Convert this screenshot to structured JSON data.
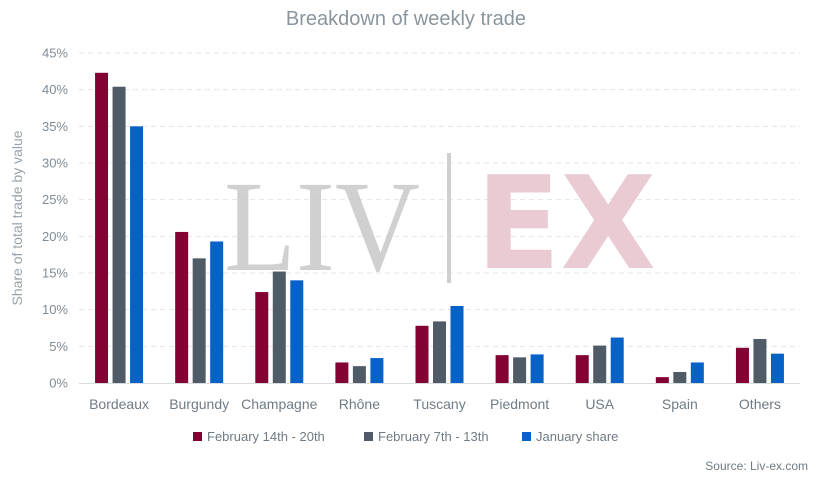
{
  "chart_data": {
    "type": "bar",
    "title": "Breakdown of weekly trade",
    "xlabel": "",
    "ylabel": "Share of total trade by value",
    "ylim": [
      0,
      45
    ],
    "y_ticks": [
      "0%",
      "5%",
      "10%",
      "15%",
      "20%",
      "25%",
      "30%",
      "35%",
      "40%",
      "45%"
    ],
    "grid": true,
    "legend_position": "bottom",
    "categories": [
      "Bordeaux",
      "Burgundy",
      "Champagne",
      "Rhône",
      "Tuscany",
      "Piedmont",
      "USA",
      "Spain",
      "Others"
    ],
    "series": [
      {
        "name": "February 14th - 20th",
        "color": "#820233",
        "values": [
          42.3,
          20.6,
          12.4,
          2.8,
          7.8,
          3.8,
          3.8,
          0.8,
          4.8
        ]
      },
      {
        "name": "February 7th - 13th",
        "color": "#4f5b66",
        "values": [
          40.4,
          17.0,
          15.2,
          2.3,
          8.4,
          3.5,
          5.1,
          1.5,
          6.0
        ]
      },
      {
        "name": "January share",
        "color": "#0762c8",
        "values": [
          35.0,
          19.3,
          14.0,
          3.4,
          10.5,
          3.9,
          6.2,
          2.8,
          4.0
        ]
      }
    ]
  },
  "watermark": {
    "left": "LIV",
    "right": "EX"
  },
  "source": "Source: Liv-ex.com"
}
